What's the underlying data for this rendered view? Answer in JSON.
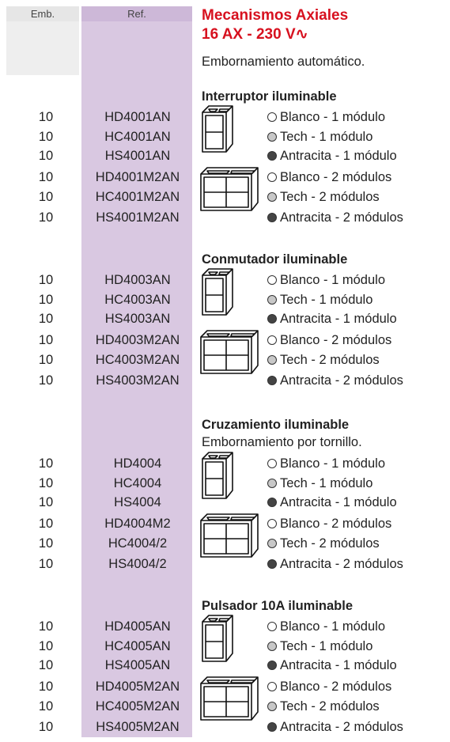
{
  "header": {
    "emb": "Emb.",
    "ref": "Ref.",
    "title": "Mecanismos Axiales",
    "subtitle": "16 AX - 230 V∿",
    "note": "Embornamiento automático."
  },
  "sections": [
    {
      "title": "Interruptor iluminable",
      "rows": [
        {
          "emb": 10,
          "ref": "HD4001AN",
          "desc": "Blanco - 1 módulo"
        },
        {
          "emb": 10,
          "ref": "HC4001AN",
          "desc": "Tech - 1 módulo"
        },
        {
          "emb": 10,
          "ref": "HS4001AN",
          "desc": "Antracita - 1 módulo"
        },
        {
          "emb": 10,
          "ref": "HD4001M2AN",
          "desc": "Blanco - 2 módulos"
        },
        {
          "emb": 10,
          "ref": "HC4001M2AN",
          "desc": "Tech - 2 módulos"
        },
        {
          "emb": 10,
          "ref": "HS4001M2AN",
          "desc": "Antracita - 2 módulos"
        }
      ]
    },
    {
      "title": "Conmutador iluminable",
      "rows": [
        {
          "emb": 10,
          "ref": "HD4003AN",
          "desc": "Blanco - 1 módulo"
        },
        {
          "emb": 10,
          "ref": "HC4003AN",
          "desc": "Tech - 1 módulo"
        },
        {
          "emb": 10,
          "ref": "HS4003AN",
          "desc": "Antracita - 1 módulo"
        },
        {
          "emb": 10,
          "ref": "HD4003M2AN",
          "desc": "Blanco - 2 módulos"
        },
        {
          "emb": 10,
          "ref": "HC4003M2AN",
          "desc": "Tech - 2 módulos"
        },
        {
          "emb": 10,
          "ref": "HS4003M2AN",
          "desc": "Antracita - 2 módulos"
        }
      ]
    },
    {
      "title": "Cruzamiento iluminable",
      "note": "Embornamiento por tornillo.",
      "rows": [
        {
          "emb": 10,
          "ref": "HD4004",
          "desc": "Blanco - 1 módulo"
        },
        {
          "emb": 10,
          "ref": "HC4004",
          "desc": "Tech - 1 módulo"
        },
        {
          "emb": 10,
          "ref": "HS4004",
          "desc": "Antracita - 1 módulo"
        },
        {
          "emb": 10,
          "ref": "HD4004M2",
          "desc": "Blanco - 2 módulos"
        },
        {
          "emb": 10,
          "ref": "HC4004/2",
          "desc": "Tech - 2 módulos"
        },
        {
          "emb": 10,
          "ref": "HS4004/2",
          "desc": "Antracita - 2 módulos"
        }
      ]
    },
    {
      "title": "Pulsador 10A iluminable",
      "rows": [
        {
          "emb": 10,
          "ref": "HD4005AN",
          "desc": "Blanco - 1 módulo"
        },
        {
          "emb": 10,
          "ref": "HC4005AN",
          "desc": "Tech - 1 módulo"
        },
        {
          "emb": 10,
          "ref": "HS4005AN",
          "desc": "Antracita - 1 módulo"
        },
        {
          "emb": 10,
          "ref": "HD4005M2AN",
          "desc": "Blanco - 2 módulos"
        },
        {
          "emb": 10,
          "ref": "HC4005M2AN",
          "desc": "Tech - 2 módulos"
        },
        {
          "emb": 10,
          "ref": "HS4005M2AN",
          "desc": "Antracita - 2 módulos"
        }
      ]
    }
  ]
}
